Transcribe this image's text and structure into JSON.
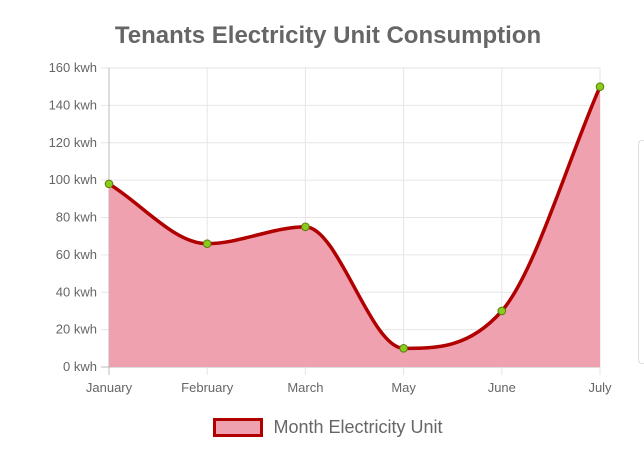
{
  "chart_data": {
    "type": "area",
    "title": "Tenants Electricity Unit Consumption",
    "categories": [
      "January",
      "February",
      "March",
      "May",
      "June",
      "July"
    ],
    "y_tick_labels": [
      "0 kwh",
      "20 kwh",
      "40 kwh",
      "60 kwh",
      "80 kwh",
      "100 kwh",
      "120 kwh",
      "140 kwh",
      "160 kwh"
    ],
    "ylim": [
      0,
      160
    ],
    "grid": true,
    "legend_position": "bottom",
    "series": [
      {
        "name": "Month Electricity Unit",
        "values": [
          98,
          66,
          75,
          10,
          30,
          150
        ],
        "line_color": "#b00000",
        "fill_color": "#f0a1b0",
        "point_color": "#8acc1c"
      }
    ]
  }
}
